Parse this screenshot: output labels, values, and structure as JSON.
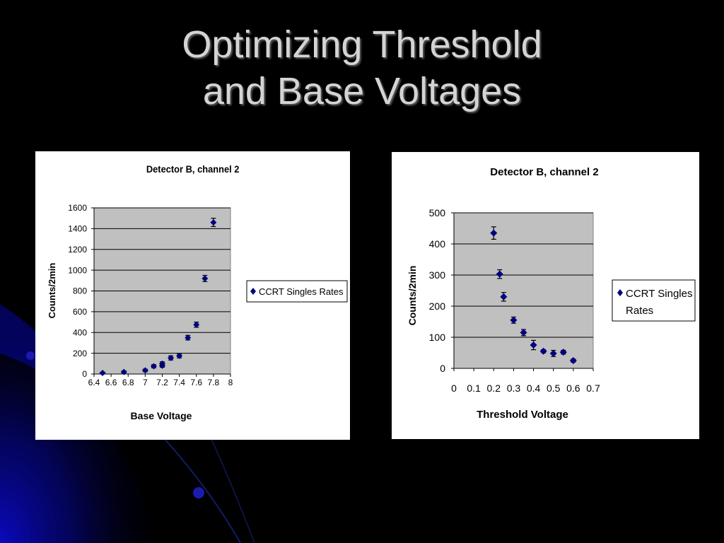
{
  "slide": {
    "title_line1": "Optimizing Threshold",
    "title_line2": "and Base Voltages"
  },
  "colors": {
    "background": "#000000",
    "title": "#d4d4d4",
    "plot_area": "#c0c0c0",
    "marker": "#000080",
    "decor_blue": "#0a0ac8"
  },
  "chart_data": [
    {
      "type": "scatter",
      "title": "Detector B, channel 2",
      "xlabel": "Base Voltage",
      "ylabel": "Counts/2min",
      "xlim": [
        6.4,
        8
      ],
      "ylim": [
        0,
        1600
      ],
      "x_ticks": [
        6.4,
        6.6,
        6.8,
        7,
        7.2,
        7.4,
        7.6,
        7.8,
        8
      ],
      "x_tick_labels": [
        "6.4",
        "6.6",
        "6.8",
        "7",
        "7.2",
        "7.4",
        "7.6",
        "7.8",
        "8"
      ],
      "y_ticks": [
        0,
        200,
        400,
        600,
        800,
        1000,
        1200,
        1400,
        1600
      ],
      "y_tick_labels": [
        "0",
        "200",
        "400",
        "600",
        "800",
        "1000",
        "1200",
        "1400",
        "1600"
      ],
      "grid": "horizontal",
      "legend_position": "right",
      "series": [
        {
          "name": "CCRT Singles Rates",
          "marker": "diamond",
          "x": [
            6.5,
            6.75,
            7,
            7.1,
            7.2,
            7.2,
            7.3,
            7.4,
            7.5,
            7.6,
            7.7,
            7.8
          ],
          "y": [
            10,
            20,
            35,
            75,
            80,
            100,
            155,
            175,
            350,
            475,
            920,
            1460
          ],
          "error": [
            8,
            10,
            12,
            15,
            15,
            18,
            20,
            20,
            22,
            25,
            30,
            40
          ]
        }
      ]
    },
    {
      "type": "scatter",
      "title": "Detector B, channel 2",
      "xlabel": "Threshold Voltage",
      "ylabel": "Counts/2min",
      "xlim": [
        0,
        0.7
      ],
      "ylim": [
        0,
        500
      ],
      "x_ticks": [
        0,
        0.1,
        0.2,
        0.3,
        0.4,
        0.5,
        0.6,
        0.7
      ],
      "x_tick_labels": [
        "0",
        "0.1",
        "0.2",
        "0.3",
        "0.4",
        "0.5",
        "0.6",
        "0.7"
      ],
      "y_ticks": [
        0,
        100,
        200,
        300,
        400,
        500
      ],
      "y_tick_labels": [
        "0",
        "100",
        "200",
        "300",
        "400",
        "500"
      ],
      "grid": "horizontal",
      "legend_position": "right",
      "series": [
        {
          "name": "CCRT Singles Rates",
          "marker": "diamond",
          "x": [
            0.2,
            0.23,
            0.25,
            0.3,
            0.35,
            0.4,
            0.45,
            0.5,
            0.55,
            0.6
          ],
          "y": [
            435,
            303,
            230,
            155,
            115,
            75,
            55,
            48,
            52,
            25
          ],
          "error": [
            20,
            14,
            14,
            10,
            10,
            15,
            5,
            10,
            6,
            5
          ]
        }
      ]
    }
  ]
}
